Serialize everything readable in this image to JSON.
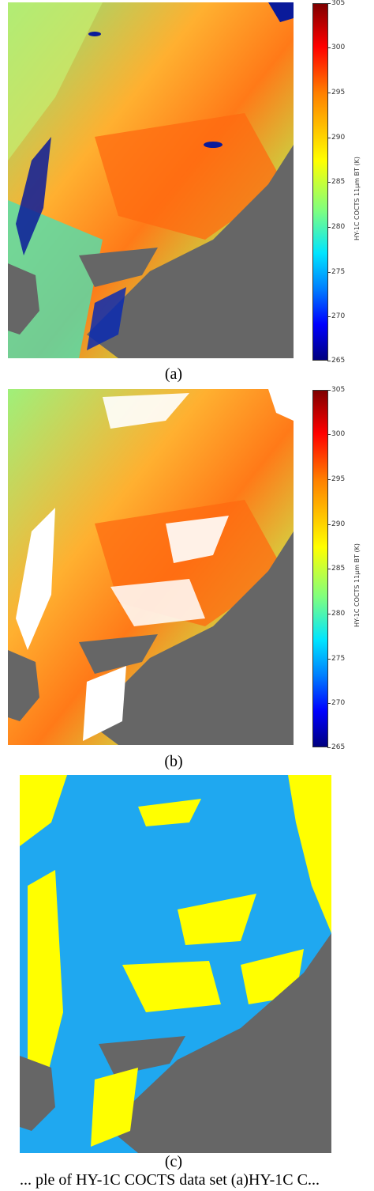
{
  "panels": [
    {
      "caption": "(a)",
      "colorbar": {
        "label": "HY-1C COCTS 11μm BT (K)",
        "ticks": [
          "305",
          "300",
          "295",
          "290",
          "285",
          "280",
          "275",
          "270",
          "265"
        ],
        "colors": [
          "#7f0000",
          "#ff0000",
          "#ff7f00",
          "#ffff00",
          "#7fff7f",
          "#00e5ff",
          "#007fff",
          "#0000ff",
          "#00007f"
        ]
      }
    },
    {
      "caption": "(b)",
      "colorbar": {
        "label": "HY-1C COCTS 11μm BT (K)",
        "ticks": [
          "305",
          "300",
          "295",
          "290",
          "285",
          "280",
          "275",
          "270",
          "265"
        ],
        "colors": [
          "#7f0000",
          "#ff0000",
          "#ff7f00",
          "#ffff00",
          "#7fff7f",
          "#00e5ff",
          "#007fff",
          "#0000ff",
          "#00007f"
        ]
      }
    },
    {
      "caption": "(c)",
      "legend_colors": {
        "cloud": "#ffff00",
        "clear": "#1fa8f0",
        "land": "#666666"
      }
    }
  ],
  "figure_caption": "... ple of HY-1C COCTS data set (a)HY-1C C..."
}
